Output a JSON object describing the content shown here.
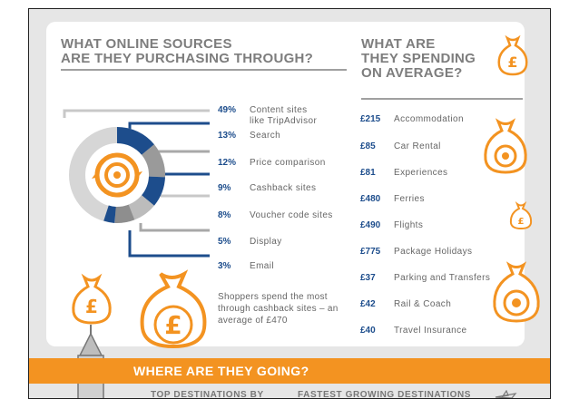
{
  "sources": {
    "title": "WHAT ONLINE SOURCES\nARE THEY PURCHASING THROUGH?",
    "items": [
      {
        "pct": "49%",
        "label": "Content sites\nlike TripAdvisor"
      },
      {
        "pct": "13%",
        "label": "Search"
      },
      {
        "pct": "12%",
        "label": "Price comparison"
      },
      {
        "pct": "9%",
        "label": "Cashback sites"
      },
      {
        "pct": "8%",
        "label": "Voucher code sites"
      },
      {
        "pct": "5%",
        "label": "Display"
      },
      {
        "pct": "3%",
        "label": "Email"
      }
    ],
    "note": "Shoppers spend the most through cashback sites – an average of £470"
  },
  "spending": {
    "title": "WHAT ARE\nTHEY SPENDING\nON AVERAGE?",
    "items": [
      {
        "price": "£215",
        "label": "Accommodation"
      },
      {
        "price": "£85",
        "label": "Car Rental"
      },
      {
        "price": "£81",
        "label": "Experiences"
      },
      {
        "price": "£480",
        "label": "Ferries"
      },
      {
        "price": "£490",
        "label": "Flights"
      },
      {
        "price": "£775",
        "label": "Package Holidays"
      },
      {
        "price": "£37",
        "label": "Parking and Transfers"
      },
      {
        "price": "£42",
        "label": "Rail & Coach"
      },
      {
        "price": "£40",
        "label": "Travel Insurance"
      }
    ]
  },
  "destinations": {
    "banner": "WHERE ARE THEY GOING?",
    "left_heading": "TOP DESTINATIONS BY",
    "right_heading": "FASTEST GROWING DESTINATIONS"
  },
  "colors": {
    "blue": "#1d4d8c",
    "orange": "#f39321",
    "gray": "#7d7d7d"
  },
  "icons": [
    "money-bag-icon",
    "pound-coin-icon",
    "globe-arrows-icon",
    "tower-icon",
    "plane-icon"
  ]
}
